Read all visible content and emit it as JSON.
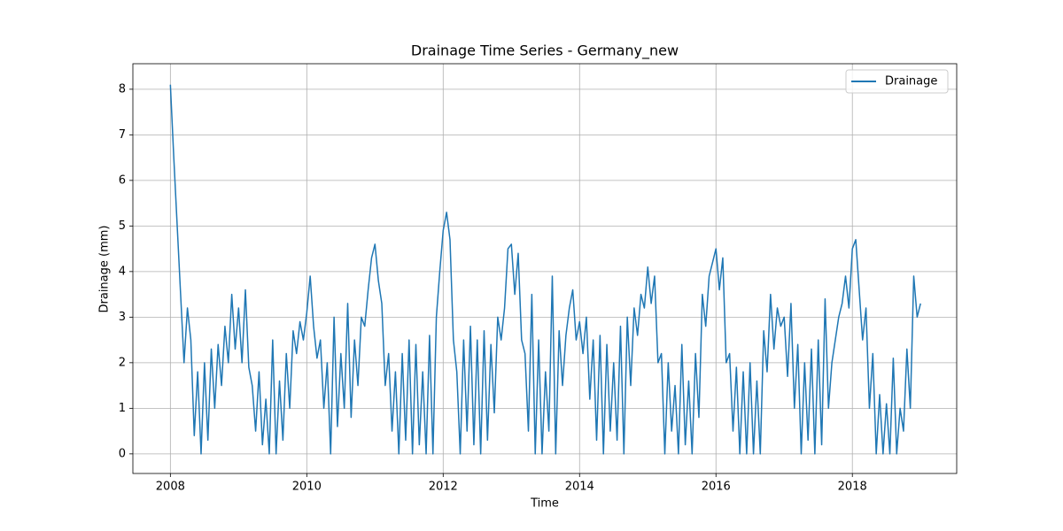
{
  "chart_data": {
    "type": "line",
    "title": "Drainage Time Series - Germany_new",
    "xlabel": "Time",
    "ylabel": "Drainage (mm)",
    "x": [
      2008,
      2008.05,
      2008.1,
      2008.15,
      2008.2,
      2008.25,
      2008.3,
      2008.35,
      2008.4,
      2008.45,
      2008.5,
      2008.55,
      2008.6,
      2008.65,
      2008.7,
      2008.75,
      2008.8,
      2008.85,
      2008.9,
      2008.95,
      2009,
      2009.05,
      2009.1,
      2009.15,
      2009.2,
      2009.25,
      2009.3,
      2009.35,
      2009.4,
      2009.45,
      2009.5,
      2009.55,
      2009.6,
      2009.65,
      2009.7,
      2009.75,
      2009.8,
      2009.85,
      2009.9,
      2009.95,
      2010,
      2010.05,
      2010.1,
      2010.15,
      2010.2,
      2010.25,
      2010.3,
      2010.35,
      2010.4,
      2010.45,
      2010.5,
      2010.55,
      2010.6,
      2010.65,
      2010.7,
      2010.75,
      2010.8,
      2010.85,
      2010.9,
      2010.95,
      2011,
      2011.05,
      2011.1,
      2011.15,
      2011.2,
      2011.25,
      2011.3,
      2011.35,
      2011.4,
      2011.45,
      2011.5,
      2011.55,
      2011.6,
      2011.65,
      2011.7,
      2011.75,
      2011.8,
      2011.85,
      2011.9,
      2011.95,
      2012,
      2012.05,
      2012.1,
      2012.15,
      2012.2,
      2012.25,
      2012.3,
      2012.35,
      2012.4,
      2012.45,
      2012.5,
      2012.55,
      2012.6,
      2012.65,
      2012.7,
      2012.75,
      2012.8,
      2012.85,
      2012.9,
      2012.95,
      2013,
      2013.05,
      2013.1,
      2013.15,
      2013.2,
      2013.25,
      2013.3,
      2013.35,
      2013.4,
      2013.45,
      2013.5,
      2013.55,
      2013.6,
      2013.65,
      2013.7,
      2013.75,
      2013.8,
      2013.85,
      2013.9,
      2013.95,
      2014,
      2014.05,
      2014.1,
      2014.15,
      2014.2,
      2014.25,
      2014.3,
      2014.35,
      2014.4,
      2014.45,
      2014.5,
      2014.55,
      2014.6,
      2014.65,
      2014.7,
      2014.75,
      2014.8,
      2014.85,
      2014.9,
      2014.95,
      2015,
      2015.05,
      2015.1,
      2015.15,
      2015.2,
      2015.25,
      2015.3,
      2015.35,
      2015.4,
      2015.45,
      2015.5,
      2015.55,
      2015.6,
      2015.65,
      2015.7,
      2015.75,
      2015.8,
      2015.85,
      2015.9,
      2015.95,
      2016,
      2016.05,
      2016.1,
      2016.15,
      2016.2,
      2016.25,
      2016.3,
      2016.35,
      2016.4,
      2016.45,
      2016.5,
      2016.55,
      2016.6,
      2016.65,
      2016.7,
      2016.75,
      2016.8,
      2016.85,
      2016.9,
      2016.95,
      2017,
      2017.05,
      2017.1,
      2017.15,
      2017.2,
      2017.25,
      2017.3,
      2017.35,
      2017.4,
      2017.45,
      2017.5,
      2017.55,
      2017.6,
      2017.65,
      2017.7,
      2017.75,
      2017.8,
      2017.85,
      2017.9,
      2017.95,
      2018,
      2018.05,
      2018.1,
      2018.15,
      2018.2,
      2018.25,
      2018.3,
      2018.35,
      2018.4,
      2018.45,
      2018.5,
      2018.55,
      2018.6,
      2018.65,
      2018.7,
      2018.75,
      2018.8,
      2018.85,
      2018.9,
      2018.95,
      2019
    ],
    "series": [
      {
        "name": "Drainage",
        "color": "#1f77b4",
        "values": [
          8.1,
          6.5,
          5.0,
          3.5,
          2.0,
          3.2,
          2.5,
          0.4,
          1.8,
          0.0,
          2.0,
          0.3,
          2.3,
          1.0,
          2.4,
          1.5,
          2.8,
          2.0,
          3.5,
          2.3,
          3.2,
          2.0,
          3.6,
          1.9,
          1.5,
          0.5,
          1.8,
          0.2,
          1.2,
          0.0,
          2.5,
          0.0,
          1.6,
          0.3,
          2.2,
          1.0,
          2.7,
          2.2,
          2.9,
          2.5,
          3.1,
          3.9,
          2.8,
          2.1,
          2.5,
          1.0,
          2.0,
          0.0,
          3.0,
          0.6,
          2.2,
          1.0,
          3.3,
          0.8,
          2.5,
          1.5,
          3.0,
          2.8,
          3.6,
          4.3,
          4.6,
          3.8,
          3.3,
          1.5,
          2.2,
          0.5,
          1.8,
          0.0,
          2.2,
          0.3,
          2.5,
          0.0,
          2.4,
          0.2,
          1.8,
          0.0,
          2.6,
          0.0,
          3.0,
          4.0,
          4.9,
          5.3,
          4.7,
          2.5,
          1.8,
          0.0,
          2.5,
          0.5,
          2.8,
          0.2,
          2.5,
          0.0,
          2.7,
          0.3,
          2.4,
          0.9,
          3.0,
          2.5,
          3.2,
          4.5,
          4.6,
          3.5,
          4.4,
          2.5,
          2.2,
          0.5,
          3.5,
          0.0,
          2.5,
          0.0,
          1.8,
          0.5,
          3.9,
          0.0,
          2.7,
          1.5,
          2.6,
          3.2,
          3.6,
          2.5,
          2.9,
          2.2,
          3.0,
          1.2,
          2.5,
          0.3,
          2.6,
          0.0,
          2.4,
          0.5,
          2.0,
          0.3,
          2.8,
          0.0,
          3.0,
          1.5,
          3.2,
          2.6,
          3.5,
          3.2,
          4.1,
          3.3,
          3.9,
          2.0,
          2.2,
          0.0,
          2.0,
          0.5,
          1.5,
          0.0,
          2.4,
          0.2,
          1.6,
          0.0,
          2.2,
          0.8,
          3.5,
          2.8,
          3.9,
          4.2,
          4.5,
          3.6,
          4.3,
          2.0,
          2.2,
          0.5,
          1.9,
          0.0,
          1.8,
          0.0,
          2.0,
          0.0,
          1.6,
          0.0,
          2.7,
          1.8,
          3.5,
          2.3,
          3.2,
          2.8,
          3.0,
          1.7,
          3.3,
          1.0,
          2.4,
          0.0,
          2.0,
          0.3,
          2.3,
          0.0,
          2.5,
          0.2,
          3.4,
          1.0,
          2.0,
          2.5,
          3.0,
          3.3,
          3.9,
          3.2,
          4.5,
          4.7,
          3.6,
          2.5,
          3.2,
          1.0,
          2.2,
          0.0,
          1.3,
          0.0,
          1.1,
          0.0,
          2.1,
          0.0,
          1.0,
          0.5,
          2.3,
          1.0,
          3.9,
          3.0,
          3.3
        ]
      }
    ],
    "xlim": [
      2007.45,
      2019.53
    ],
    "xticks": [
      2008,
      2010,
      2012,
      2014,
      2016,
      2018
    ],
    "ylim": [
      -0.43,
      8.56
    ],
    "yticks": [
      0,
      1,
      2,
      3,
      4,
      5,
      6,
      7,
      8
    ],
    "grid": true,
    "legend": "upper right"
  }
}
